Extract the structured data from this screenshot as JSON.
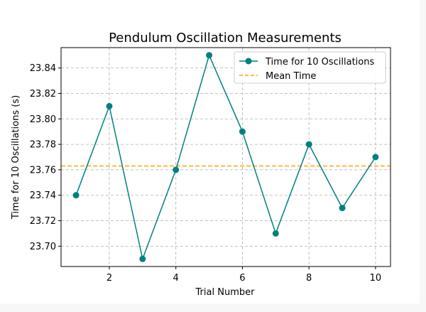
{
  "chart_data": {
    "type": "line",
    "title": "Pendulum Oscillation Measurements",
    "xlabel": "Trial Number",
    "ylabel": "Time for 10 Oscillations (s)",
    "x": [
      1,
      2,
      3,
      4,
      5,
      6,
      7,
      8,
      9,
      10
    ],
    "series": [
      {
        "name": "Time for 10 Oscillations",
        "values": [
          23.74,
          23.81,
          23.69,
          23.76,
          23.85,
          23.79,
          23.71,
          23.78,
          23.73,
          23.77
        ],
        "color": "#008080",
        "marker": "circle"
      }
    ],
    "reference_lines": [
      {
        "name": "Mean Time",
        "value": 23.763,
        "color": "#FFA500",
        "style": "dashed"
      }
    ],
    "xlim": [
      0.55,
      10.45
    ],
    "ylim": [
      23.684,
      23.856
    ],
    "xticks": [
      2,
      4,
      6,
      8,
      10
    ],
    "yticks": [
      23.7,
      23.72,
      23.74,
      23.76,
      23.78,
      23.8,
      23.82,
      23.84
    ],
    "grid": true,
    "legend_position": "upper right"
  }
}
